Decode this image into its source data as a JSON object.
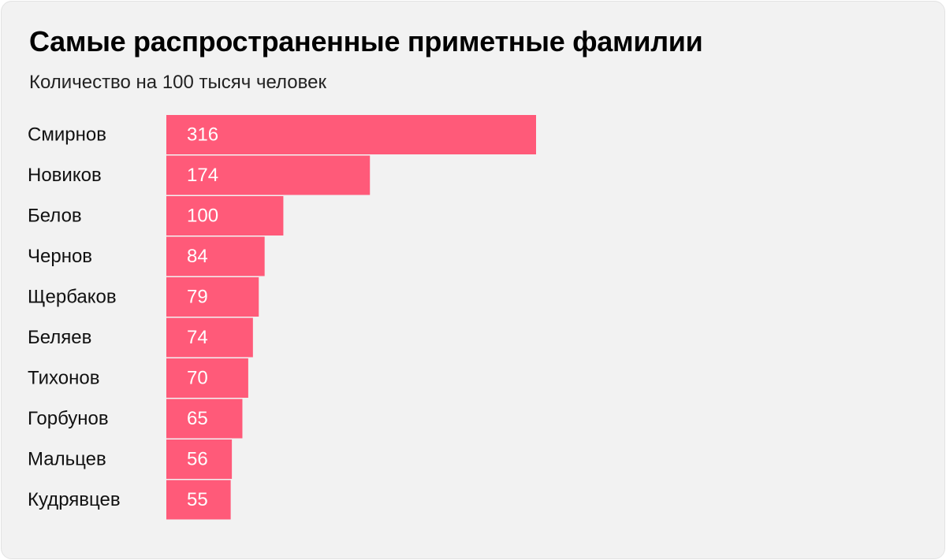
{
  "header": {
    "title": "Самые распространенные приметные фамилии",
    "subtitle": "Количество на 100 тысяч человек"
  },
  "colors": {
    "bar": "#ff5a79",
    "background": "#f2f2f2",
    "label_text": "#111111",
    "value_text": "#ffffff"
  },
  "chart_data": {
    "type": "bar",
    "orientation": "horizontal",
    "title": "Самые распространенные приметные фамилии",
    "subtitle": "Количество на 100 тысяч человек",
    "categories": [
      "Смирнов",
      "Новиков",
      "Белов",
      "Чернов",
      "Щербаков",
      "Беляев",
      "Тихонов",
      "Горбунов",
      "Мальцев",
      "Кудрявцев"
    ],
    "values": [
      316,
      174,
      100,
      84,
      79,
      74,
      70,
      65,
      56,
      55
    ],
    "value_labels": [
      "316",
      "174",
      "100",
      "84",
      "79",
      "74",
      "70",
      "65",
      "56",
      "55"
    ],
    "xlabel": "",
    "ylabel": "",
    "xlim": [
      0,
      316
    ],
    "grid": false,
    "legend": "none"
  }
}
